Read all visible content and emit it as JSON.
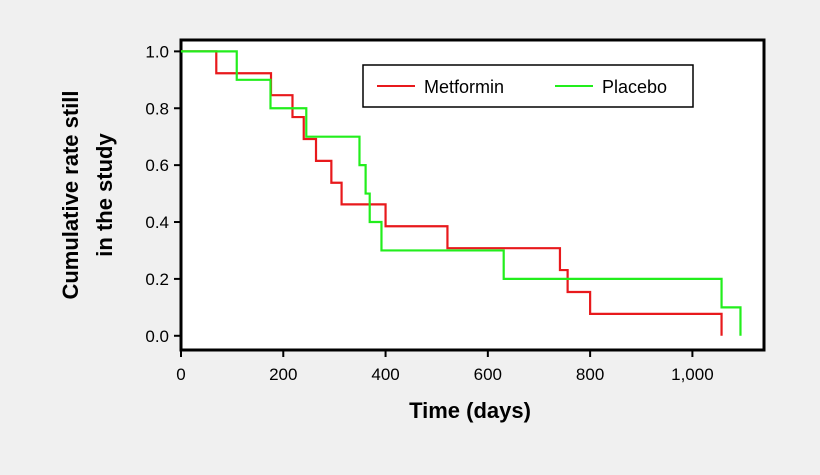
{
  "chart_data": {
    "type": "line",
    "subtype": "step (Kaplan-Meier)",
    "xlabel": "Time (days)",
    "ylabel": [
      "Cumulative rate still",
      "in the study"
    ],
    "xlim": [
      0,
      1140
    ],
    "ylim": [
      -0.05,
      1.04
    ],
    "xticks": [
      0,
      200,
      400,
      600,
      800,
      1000
    ],
    "xtick_labels": [
      "0",
      "200",
      "400",
      "600",
      "800",
      "1,000"
    ],
    "yticks": [
      0,
      0.2,
      0.4,
      0.6,
      0.8,
      1.0
    ],
    "ytick_labels": [
      "0.0",
      "0.2",
      "0.4",
      "0.6",
      "0.8",
      "1.0"
    ],
    "grid": false,
    "legend_placement": "top-right",
    "series": [
      {
        "name": "Metformin",
        "color": "#e8191c",
        "x": [
          0,
          69,
          176,
          218,
          240,
          264,
          294,
          314,
          400,
          521,
          741,
          756,
          800,
          1057
        ],
        "y": [
          1.0,
          0.923,
          0.846,
          0.769,
          0.692,
          0.615,
          0.538,
          0.462,
          0.385,
          0.308,
          0.231,
          0.154,
          0.077,
          0.0
        ]
      },
      {
        "name": "Placebo",
        "color": "#22ee1c",
        "x": [
          0,
          109,
          175,
          245,
          349,
          361,
          369,
          392,
          631,
          1057,
          1094
        ],
        "y": [
          1.0,
          0.9,
          0.8,
          0.7,
          0.6,
          0.5,
          0.4,
          0.3,
          0.2,
          0.1,
          0.0
        ]
      }
    ]
  }
}
